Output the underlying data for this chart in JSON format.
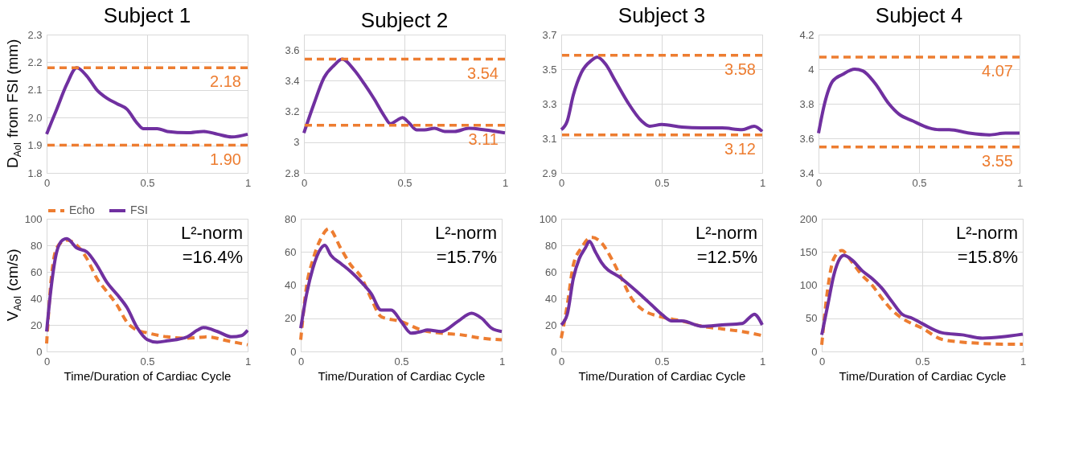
{
  "chart_data": [
    {
      "type": "line",
      "title": "Subject 1",
      "ylabel": "D$_{AoI}$ from FSI (mm)",
      "xlim": [
        0,
        1
      ],
      "xticks": [
        0,
        0.5,
        1
      ],
      "ylim": [
        1.8,
        2.3
      ],
      "yticks": [
        1.8,
        1.9,
        {
          "value": 2,
          "label": "2.0"
        },
        2.1,
        2.2,
        2.3
      ],
      "grid": true,
      "legend": false,
      "series": [
        {
          "color": "#7030a0",
          "line_style": "solid",
          "x": [
            0,
            0.05,
            0.1,
            0.15,
            0.2,
            0.25,
            0.3,
            0.35,
            0.4,
            0.45,
            0.48,
            0.55,
            0.6,
            0.7,
            0.78,
            0.85,
            0.92,
            1
          ],
          "values": [
            1.94,
            2.03,
            2.12,
            2.18,
            2.15,
            2.1,
            2.07,
            2.05,
            2.03,
            1.98,
            1.96,
            1.96,
            1.95,
            1.945,
            1.95,
            1.94,
            1.93,
            1.94
          ]
        }
      ],
      "ref_lines": [
        {
          "axis": "y",
          "value": 2.18,
          "label": "2.18",
          "color": "#ed7d31",
          "line_style": "dashed"
        },
        {
          "axis": "y",
          "value": 1.9,
          "label": "1.90",
          "color": "#ed7d31",
          "line_style": "dashed"
        }
      ]
    },
    {
      "type": "line",
      "title": "Subject 2",
      "xlim": [
        0,
        1
      ],
      "xticks": [
        0,
        0.5,
        1
      ],
      "ylim": [
        2.8,
        3.7
      ],
      "yticks": [
        2.8,
        3,
        3.2,
        3.4,
        3.6
      ],
      "grid": true,
      "legend": false,
      "series": [
        {
          "color": "#7030a0",
          "line_style": "solid",
          "x": [
            0,
            0.05,
            0.1,
            0.15,
            0.19,
            0.25,
            0.3,
            0.35,
            0.4,
            0.43,
            0.46,
            0.49,
            0.52,
            0.56,
            0.6,
            0.65,
            0.7,
            0.75,
            0.82,
            0.9,
            1
          ],
          "values": [
            3.06,
            3.25,
            3.42,
            3.5,
            3.54,
            3.47,
            3.38,
            3.28,
            3.17,
            3.12,
            3.14,
            3.16,
            3.13,
            3.08,
            3.08,
            3.09,
            3.07,
            3.07,
            3.09,
            3.08,
            3.06
          ]
        }
      ],
      "ref_lines": [
        {
          "axis": "y",
          "value": 3.54,
          "label": "3.54",
          "color": "#ed7d31",
          "line_style": "dashed"
        },
        {
          "axis": "y",
          "value": 3.11,
          "label": "3.11",
          "color": "#ed7d31",
          "line_style": "dashed"
        }
      ]
    },
    {
      "type": "line",
      "title": "Subject 3",
      "xlim": [
        0,
        1
      ],
      "xticks": [
        0,
        0.5,
        1
      ],
      "ylim": [
        2.9,
        3.7
      ],
      "yticks": [
        2.9,
        3.1,
        3.3,
        3.5,
        3.7
      ],
      "grid": true,
      "legend": false,
      "series": [
        {
          "color": "#7030a0",
          "line_style": "solid",
          "x": [
            0,
            0.03,
            0.06,
            0.1,
            0.15,
            0.18,
            0.22,
            0.27,
            0.33,
            0.4,
            0.44,
            0.5,
            0.6,
            0.7,
            0.8,
            0.9,
            0.96,
            1
          ],
          "values": [
            3.15,
            3.2,
            3.35,
            3.48,
            3.55,
            3.57,
            3.53,
            3.43,
            3.31,
            3.2,
            3.17,
            3.18,
            3.165,
            3.16,
            3.16,
            3.15,
            3.17,
            3.14
          ]
        }
      ],
      "ref_lines": [
        {
          "axis": "y",
          "value": 3.58,
          "label": "3.58",
          "color": "#ed7d31",
          "line_style": "dashed"
        },
        {
          "axis": "y",
          "value": 3.12,
          "label": "3.12",
          "color": "#ed7d31",
          "line_style": "dashed"
        }
      ]
    },
    {
      "type": "line",
      "title": "Subject 4",
      "xlim": [
        0,
        1
      ],
      "xticks": [
        0,
        0.5,
        1
      ],
      "ylim": [
        3.4,
        4.2
      ],
      "yticks": [
        3.4,
        3.6,
        3.8,
        4,
        4.2
      ],
      "grid": true,
      "legend": false,
      "series": [
        {
          "color": "#7030a0",
          "line_style": "solid",
          "x": [
            0,
            0.03,
            0.07,
            0.12,
            0.18,
            0.22,
            0.28,
            0.35,
            0.4,
            0.47,
            0.55,
            0.6,
            0.65,
            0.75,
            0.85,
            0.93,
            1
          ],
          "values": [
            3.63,
            3.8,
            3.93,
            3.97,
            4.0,
            3.99,
            3.92,
            3.8,
            3.74,
            3.7,
            3.66,
            3.65,
            3.65,
            3.63,
            3.62,
            3.63,
            3.63
          ]
        }
      ],
      "ref_lines": [
        {
          "axis": "y",
          "value": 4.07,
          "label": "4.07",
          "color": "#ed7d31",
          "line_style": "dashed"
        },
        {
          "axis": "y",
          "value": 3.55,
          "label": "3.55",
          "color": "#ed7d31",
          "line_style": "dashed"
        }
      ]
    },
    {
      "type": "line",
      "ylabel": "V$_{AoI}$ (cm/s)",
      "xlabel": "Time/Duration of Cardiac Cycle",
      "xlim": [
        0,
        1
      ],
      "xticks": [
        0,
        0.5,
        1
      ],
      "ylim": [
        0,
        100
      ],
      "yticks": [
        0,
        20,
        40,
        60,
        80,
        100
      ],
      "grid": true,
      "legend": "top",
      "annotations": [
        "L²-norm",
        "=16.4%"
      ],
      "series": [
        {
          "name": "Echo",
          "color": "#ed7d31",
          "line_style": "dashed",
          "x": [
            0,
            0.02,
            0.05,
            0.1,
            0.15,
            0.2,
            0.25,
            0.3,
            0.35,
            0.4,
            0.45,
            0.5,
            0.6,
            0.7,
            0.8,
            0.9,
            1
          ],
          "values": [
            6,
            50,
            78,
            84,
            80,
            70,
            55,
            45,
            35,
            22,
            16,
            14,
            11,
            10,
            11,
            8,
            5
          ]
        },
        {
          "name": "FSI",
          "color": "#7030a0",
          "line_style": "solid",
          "x": [
            0,
            0.02,
            0.05,
            0.08,
            0.1,
            0.15,
            0.2,
            0.25,
            0.3,
            0.35,
            0.4,
            0.45,
            0.5,
            0.55,
            0.6,
            0.7,
            0.75,
            0.78,
            0.85,
            0.92,
            0.97,
            1
          ],
          "values": [
            15,
            45,
            75,
            84,
            85,
            78,
            75,
            65,
            52,
            43,
            33,
            18,
            9,
            7,
            8,
            11,
            16,
            18,
            15,
            11,
            12,
            16
          ]
        }
      ]
    },
    {
      "type": "line",
      "xlabel": "Time/Duration of Cardiac Cycle",
      "xlim": [
        0,
        1
      ],
      "xticks": [
        0,
        0.5,
        1
      ],
      "ylim": [
        0,
        80
      ],
      "yticks": [
        0,
        20,
        40,
        60,
        80
      ],
      "grid": true,
      "legend": false,
      "annotations": [
        "L²-norm",
        "=15.7%"
      ],
      "series": [
        {
          "color": "#ed7d31",
          "line_style": "dashed",
          "x": [
            0,
            0.03,
            0.06,
            0.1,
            0.14,
            0.2,
            0.25,
            0.3,
            0.35,
            0.4,
            0.5,
            0.6,
            0.7,
            0.8,
            0.9,
            1
          ],
          "values": [
            7,
            40,
            55,
            68,
            74,
            62,
            52,
            45,
            32,
            21,
            18,
            13,
            11,
            10,
            8,
            7
          ]
        },
        {
          "color": "#7030a0",
          "line_style": "solid",
          "x": [
            0,
            0.03,
            0.06,
            0.1,
            0.12,
            0.15,
            0.2,
            0.25,
            0.3,
            0.35,
            0.4,
            0.45,
            0.5,
            0.55,
            0.6,
            0.63,
            0.7,
            0.78,
            0.85,
            0.9,
            0.95,
            1
          ],
          "values": [
            14,
            35,
            50,
            62,
            64,
            58,
            53,
            48,
            42,
            35,
            25,
            25,
            18,
            11,
            12,
            13,
            12,
            18,
            23,
            20,
            14,
            12
          ]
        }
      ]
    },
    {
      "type": "line",
      "xlabel": "Time/Duration of Cardiac Cycle",
      "xlim": [
        0,
        1
      ],
      "xticks": [
        0,
        0.5,
        1
      ],
      "ylim": [
        0,
        100
      ],
      "yticks": [
        0,
        20,
        40,
        60,
        80,
        100
      ],
      "grid": true,
      "legend": false,
      "annotations": [
        "L²-norm",
        "=12.5%"
      ],
      "series": [
        {
          "color": "#ed7d31",
          "line_style": "dashed",
          "x": [
            0,
            0.03,
            0.06,
            0.1,
            0.15,
            0.2,
            0.25,
            0.3,
            0.35,
            0.4,
            0.5,
            0.6,
            0.7,
            0.8,
            0.9,
            1
          ],
          "values": [
            10,
            35,
            65,
            78,
            86,
            82,
            70,
            55,
            40,
            32,
            26,
            23,
            19,
            17,
            15,
            12
          ]
        },
        {
          "color": "#7030a0",
          "line_style": "solid",
          "x": [
            0,
            0.03,
            0.06,
            0.09,
            0.12,
            0.14,
            0.17,
            0.2,
            0.3,
            0.4,
            0.45,
            0.5,
            0.55,
            0.6,
            0.7,
            0.8,
            0.9,
            0.94,
            0.96,
            1
          ],
          "values": [
            20,
            28,
            55,
            70,
            78,
            83,
            75,
            67,
            55,
            42,
            35,
            28,
            23,
            23,
            19,
            20,
            21,
            26,
            28,
            20
          ]
        }
      ]
    },
    {
      "type": "line",
      "xlabel": "Time/Duration of Cardiac Cycle",
      "xlim": [
        0,
        1
      ],
      "xticks": [
        0,
        0.5,
        1
      ],
      "ylim": [
        0,
        200
      ],
      "yticks": [
        0,
        50,
        100,
        150,
        200
      ],
      "grid": true,
      "legend": false,
      "annotations": [
        "L²-norm",
        "=15.8%"
      ],
      "series": [
        {
          "color": "#ed7d31",
          "line_style": "dashed",
          "x": [
            0,
            0.03,
            0.06,
            0.1,
            0.15,
            0.2,
            0.25,
            0.3,
            0.35,
            0.4,
            0.5,
            0.6,
            0.7,
            0.8,
            0.9,
            1
          ],
          "values": [
            10,
            95,
            140,
            152,
            135,
            115,
            100,
            80,
            62,
            50,
            35,
            18,
            14,
            12,
            11,
            11
          ]
        },
        {
          "color": "#7030a0",
          "line_style": "solid",
          "x": [
            0,
            0.03,
            0.06,
            0.09,
            0.11,
            0.15,
            0.2,
            0.25,
            0.3,
            0.35,
            0.4,
            0.45,
            0.5,
            0.6,
            0.7,
            0.8,
            0.9,
            1
          ],
          "values": [
            25,
            70,
            115,
            140,
            145,
            138,
            122,
            110,
            95,
            75,
            56,
            50,
            42,
            28,
            25,
            20,
            22,
            26
          ]
        }
      ]
    }
  ]
}
